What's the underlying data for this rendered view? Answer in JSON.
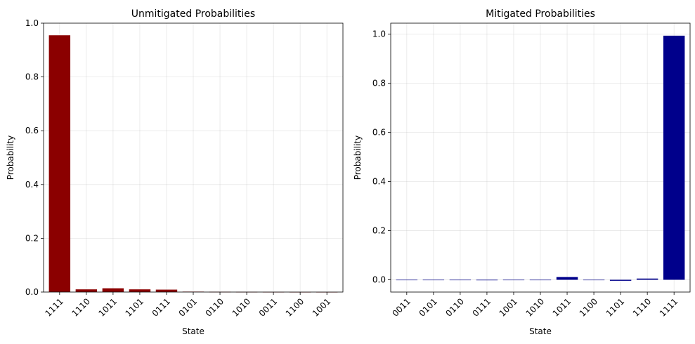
{
  "chart_data": [
    {
      "type": "bar",
      "title": "Unmitigated Probabilities",
      "xlabel": "State",
      "ylabel": "Probability",
      "categories": [
        "1111",
        "1110",
        "1011",
        "1101",
        "0111",
        "0101",
        "0110",
        "1010",
        "0011",
        "1100",
        "1001"
      ],
      "values": [
        0.955,
        0.01,
        0.014,
        0.01,
        0.009,
        0.0015,
        0.0008,
        0.0005,
        0.0003,
        0.0002,
        0.0002
      ],
      "ylim": [
        0,
        1.0
      ],
      "yticks": [
        "0.0",
        "0.2",
        "0.4",
        "0.6",
        "0.8",
        "1.0"
      ],
      "grid": true,
      "color": "#8b0000"
    },
    {
      "type": "bar",
      "title": "Mitigated Probabilities",
      "xlabel": "State",
      "ylabel": "Probability",
      "categories": [
        "0011",
        "0101",
        "0110",
        "0111",
        "1001",
        "1010",
        "1011",
        "1100",
        "1101",
        "1110",
        "1111"
      ],
      "values": [
        0.0,
        0.0,
        0.0,
        -0.002,
        0.0,
        0.0,
        0.011,
        0.0,
        -0.004,
        0.005,
        0.994
      ],
      "ylim": [
        -0.05,
        1.045
      ],
      "yticks": [
        "0.0",
        "0.2",
        "0.4",
        "0.6",
        "0.8",
        "1.0"
      ],
      "grid": true,
      "color": "#00008b"
    }
  ]
}
